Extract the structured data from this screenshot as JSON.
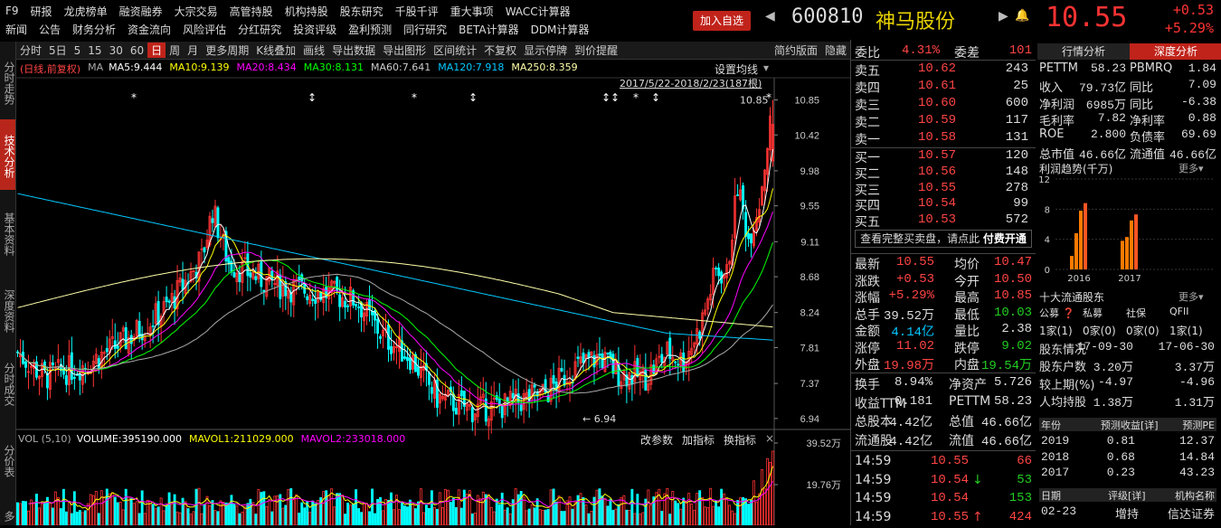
{
  "nav": {
    "row1": [
      "F9",
      "研报",
      "龙虎榜单",
      "融资融券",
      "大宗交易",
      "高管持股",
      "机构持股",
      "股东研究",
      "千股千评",
      "重大事项",
      "WACC计算器"
    ],
    "row2": [
      "新闻",
      "公告",
      "财务分析",
      "资金流向",
      "风险评估",
      "分红研究",
      "投资评级",
      "盈利预测",
      "同行研究",
      "BETA计算器",
      "DDM计算器"
    ]
  },
  "header": {
    "add_button": "加入自选",
    "code": "600810",
    "name": "神马股份",
    "price": "10.55",
    "change": "+0.53",
    "change_pct": "+5.29%"
  },
  "left_tabs": [
    "分时走势",
    "技术分析",
    "基本资料",
    "深度资料",
    "分时成交",
    "分价表",
    "多"
  ],
  "toolbar": {
    "items": [
      "分时",
      "5日",
      "5",
      "15",
      "30",
      "60",
      "日",
      "周",
      "月",
      "更多周期",
      "K线叠加",
      "画线",
      "导出数据",
      "导出图形",
      "区间统计",
      "不复权",
      "显示停牌",
      "到价提醒"
    ],
    "selected": "日",
    "right_items": [
      "简约版面",
      "隐藏"
    ]
  },
  "chart": {
    "indicator_line": {
      "prefix": "(日线,前复权)",
      "ma_label": "MA",
      "items": [
        {
          "text": "MA5:9.444",
          "color": "#ffffff"
        },
        {
          "text": "MA10:9.139",
          "color": "#ffff00"
        },
        {
          "text": "MA20:8.434",
          "color": "#ff00ff"
        },
        {
          "text": "MA30:8.131",
          "color": "#00ff00"
        },
        {
          "text": "MA60:7.641",
          "color": "#cccccc"
        },
        {
          "text": "MA120:7.918",
          "color": "#00c8ff"
        },
        {
          "text": "MA250:8.359",
          "color": "#ffffaa"
        }
      ]
    },
    "set_ma": "设置均线",
    "range": "2017/5/22-2018/2/23(187根)",
    "y_ticks": [
      "10.85",
      "10.42",
      "9.98",
      "9.55",
      "9.11",
      "8.68",
      "8.24",
      "7.81",
      "7.37",
      "6.94"
    ],
    "high_label": "10.85",
    "low_label": "6.94",
    "volume_line": {
      "vol_label": "VOL (5,10)",
      "volume": "VOLUME:395190.000",
      "mavol1": "MAVOL1:211029.000",
      "mavol2": "MAVOL2:233018.000"
    },
    "vol_buttons": [
      "改参数",
      "加指标",
      "换指标"
    ],
    "vol_ticks": [
      "39.52万",
      "19.76万"
    ]
  },
  "orderbook": {
    "weibi_label": "委比",
    "weibi": "4.31%",
    "weicha_label": "委差",
    "weicha": "101",
    "asks": [
      {
        "label": "卖五",
        "price": "10.62",
        "vol": "243"
      },
      {
        "label": "卖四",
        "price": "10.61",
        "vol": "25"
      },
      {
        "label": "卖三",
        "price": "10.60",
        "vol": "600"
      },
      {
        "label": "卖二",
        "price": "10.59",
        "vol": "117"
      },
      {
        "label": "卖一",
        "price": "10.58",
        "vol": "131"
      }
    ],
    "bids": [
      {
        "label": "买一",
        "price": "10.57",
        "vol": "120"
      },
      {
        "label": "买二",
        "price": "10.56",
        "vol": "148"
      },
      {
        "label": "买三",
        "price": "10.55",
        "vol": "278"
      },
      {
        "label": "买四",
        "price": "10.54",
        "vol": "99"
      },
      {
        "label": "买五",
        "price": "10.53",
        "vol": "572"
      }
    ],
    "full_book_text": "查看完整买卖盘，请点此",
    "paid_text": "付费开通"
  },
  "quote": [
    {
      "l1": "最新",
      "v1": "10.55",
      "c1": "red",
      "l2": "均价",
      "v2": "10.47",
      "c2": "red"
    },
    {
      "l1": "涨跌",
      "v1": "+0.53",
      "c1": "red",
      "l2": "今开",
      "v2": "10.50",
      "c2": "red"
    },
    {
      "l1": "涨幅",
      "v1": "+5.29%",
      "c1": "red",
      "l2": "最高",
      "v2": "10.85",
      "c2": "red"
    },
    {
      "l1": "总手",
      "v1": "39.52万",
      "c1": "white",
      "l2": "最低",
      "v2": "10.03",
      "c2": "green"
    },
    {
      "l1": "金额",
      "v1": "4.14亿",
      "c1": "cyan",
      "l2": "量比",
      "v2": "2.38",
      "c2": "white"
    },
    {
      "l1": "涨停",
      "v1": "11.02",
      "c1": "red",
      "l2": "跌停",
      "v2": "9.02",
      "c2": "green"
    },
    {
      "l1": "外盘",
      "v1": "19.98万",
      "c1": "red",
      "l2": "内盘",
      "v2": "19.54万",
      "c2": "green"
    }
  ],
  "quote2": [
    {
      "l1": "换手",
      "v1": "8.94%",
      "l2": "净资产",
      "v2": "5.726"
    },
    {
      "l1": "收益TTM",
      "v1": "0.181",
      "l2": "PETTM",
      "v2": "58.23"
    },
    {
      "l1": "总股本",
      "v1": "4.42亿",
      "l2": "总值",
      "v2": "46.66亿"
    },
    {
      "l1": "流通股",
      "v1": "4.42亿",
      "l2": "流值",
      "v2": "46.66亿"
    }
  ],
  "ticks": [
    {
      "time": "14:59",
      "price": "10.55",
      "vol": "66",
      "dir": "",
      "vcolor": "red"
    },
    {
      "time": "14:59",
      "price": "10.54",
      "vol": "53",
      "dir": "↓",
      "vcolor": "green"
    },
    {
      "time": "14:59",
      "price": "10.54",
      "vol": "153",
      "dir": "",
      "vcolor": "green"
    },
    {
      "time": "14:59",
      "price": "10.55",
      "vol": "424",
      "dir": "↑",
      "vcolor": "red"
    }
  ],
  "deep": {
    "tabs": [
      "行情分析",
      "深度分析"
    ],
    "selected": "深度分析",
    "metrics": [
      {
        "l1": "PETTM",
        "v1": "58.23",
        "l2": "PBMRQ",
        "v2": "1.84"
      },
      {
        "l1": "收入",
        "v1": "79.73亿",
        "l2": "同比",
        "v2": "7.09"
      },
      {
        "l1": "净利润",
        "v1": "6985万",
        "l2": "同比",
        "v2": "-6.38"
      },
      {
        "l1": "毛利率",
        "v1": "7.82",
        "l2": "净利率",
        "v2": "0.88"
      },
      {
        "l1": "ROE",
        "v1": "2.800",
        "l2": "负债率",
        "v2": "69.69"
      },
      {
        "l1": "总市值",
        "v1": "46.66亿",
        "l2": "流通值",
        "v2": "46.66亿"
      }
    ],
    "profit_trend_title": "利润趋势(千万)",
    "more": "更多▾",
    "profit_chart": {
      "y_ticks": [
        "12",
        "8",
        "4",
        "0"
      ],
      "categories": [
        "2016",
        "2017"
      ],
      "quarters": [
        [
          1.8,
          4.8,
          7.8,
          8.8
        ],
        [
          3.8,
          4.3,
          6.5,
          7.3
        ]
      ]
    },
    "top10_title": "十大流通股东",
    "top10_more": "更多▾",
    "holder_types": [
      "公募",
      "私募",
      "社保",
      "QFII"
    ],
    "holder_counts": [
      "1家(1)",
      "0家(0)",
      "0家(0)",
      "1家(1)"
    ],
    "holders_table": [
      {
        "l": "股东情况",
        "a": "17-09-30",
        "b": "17-06-30"
      },
      {
        "l": "股东户数",
        "a": "3.20万",
        "b": "3.37万"
      },
      {
        "l": "较上期(%)",
        "a": "-4.97",
        "b": "-4.96"
      },
      {
        "l": "人均持股",
        "a": "1.38万",
        "b": "1.31万"
      }
    ],
    "forecast_header": [
      "年份",
      "预测收益[详]",
      "预测PE"
    ],
    "forecast": [
      {
        "y": "2019",
        "e": "0.81",
        "pe": "12.37"
      },
      {
        "y": "2018",
        "e": "0.68",
        "pe": "14.84"
      },
      {
        "y": "2017",
        "e": "0.23",
        "pe": "43.23"
      }
    ],
    "rating_header": [
      "日期",
      "评级[详]",
      "机构名称"
    ],
    "ratings": [
      {
        "d": "02-23",
        "r": "增持",
        "o": "信达证券"
      }
    ]
  }
}
